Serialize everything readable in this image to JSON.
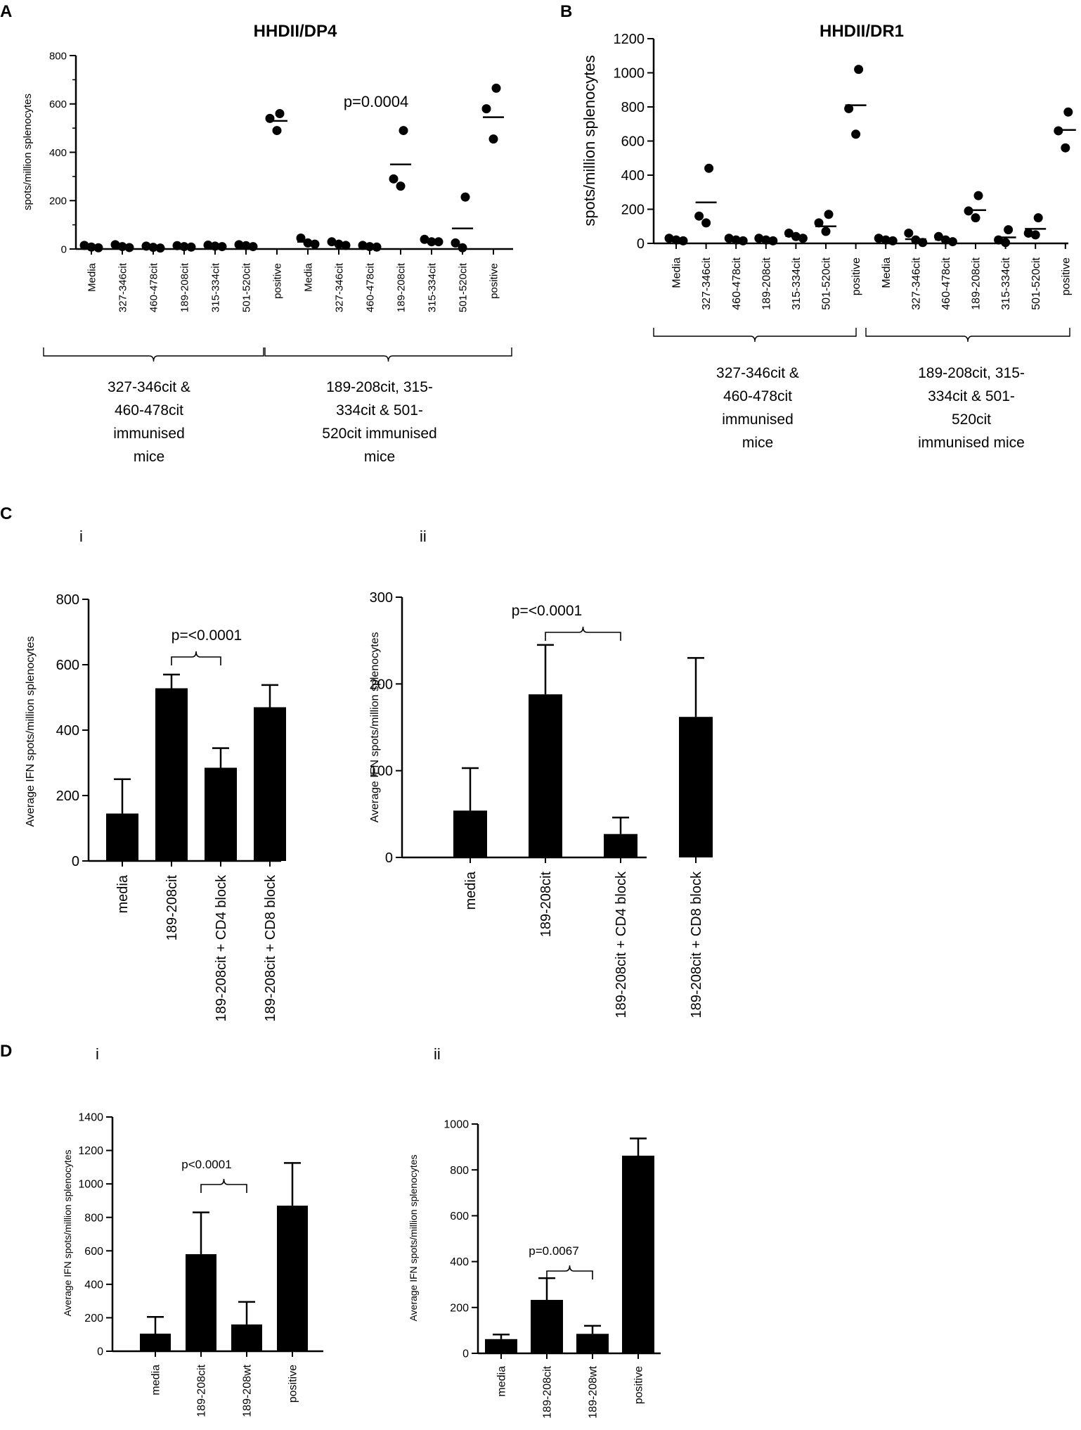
{
  "panels": {
    "A": {
      "label": "A"
    },
    "B": {
      "label": "B"
    },
    "C": {
      "label": "C",
      "sub_i": "i",
      "sub_ii": "ii"
    },
    "D": {
      "label": "D",
      "sub_i": "i",
      "sub_ii": "ii"
    }
  },
  "groups": {
    "group1": [
      "327-346cit &",
      "460-478cit",
      "immunised",
      "mice"
    ],
    "groupA2": [
      "189-208cit, 315-",
      "334cit & 501-",
      "520cit immunised",
      "mice"
    ],
    "groupB2": [
      "189-208cit, 315-",
      "334cit & 501-",
      "520cit",
      "immunised mice"
    ]
  },
  "chart_data": [
    {
      "id": "A",
      "type": "scatter",
      "title": "HHDII/DP4",
      "ylabel": "spots/million splenocytes",
      "ylim": [
        0,
        800
      ],
      "yticks": [
        0,
        200,
        400,
        600,
        800
      ],
      "categories": [
        "Media",
        "327-346cit",
        "460-478cit",
        "189-208cit",
        "315-334cit",
        "501-520cit",
        "positive",
        "Media",
        "327-346cit",
        "460-478cit",
        "189-208cit",
        "315-334cit",
        "501-520cit",
        "positive"
      ],
      "points": [
        [
          15,
          8,
          5
        ],
        [
          18,
          10,
          6
        ],
        [
          12,
          7,
          4
        ],
        [
          14,
          10,
          8
        ],
        [
          16,
          12,
          10
        ],
        [
          18,
          14,
          10
        ],
        [
          560,
          540,
          490
        ],
        [
          45,
          25,
          20
        ],
        [
          30,
          20,
          15
        ],
        [
          15,
          10,
          8
        ],
        [
          490,
          290,
          260
        ],
        [
          40,
          30,
          30
        ],
        [
          215,
          25,
          5
        ],
        [
          665,
          580,
          455
        ]
      ],
      "means": [
        9,
        11,
        8,
        11,
        13,
        14,
        530,
        30,
        22,
        11,
        350,
        33,
        85,
        545
      ],
      "annotation": "p=0.0004"
    },
    {
      "id": "B",
      "type": "scatter",
      "title": "HHDII/DR1",
      "ylabel": "spots/million splenocytes",
      "ylim": [
        0,
        1200
      ],
      "yticks": [
        0,
        200,
        400,
        600,
        800,
        1000,
        1200
      ],
      "categories": [
        "Media",
        "327-346cit",
        "460-478cit",
        "189-208cit",
        "315-334cit",
        "501-520cit",
        "positive",
        "Media",
        "327-346cit",
        "460-478cit",
        "189-208cit",
        "315-334cit",
        "501-520cit",
        "positive"
      ],
      "points": [
        [
          30,
          20,
          15
        ],
        [
          440,
          160,
          120
        ],
        [
          30,
          20,
          15
        ],
        [
          30,
          20,
          15
        ],
        [
          60,
          40,
          30
        ],
        [
          170,
          120,
          70
        ],
        [
          1020,
          790,
          640
        ],
        [
          30,
          20,
          15
        ],
        [
          60,
          20,
          5
        ],
        [
          40,
          20,
          10
        ],
        [
          280,
          190,
          150
        ],
        [
          80,
          20,
          5
        ],
        [
          150,
          60,
          50
        ],
        [
          770,
          660,
          560
        ]
      ],
      "means": [
        22,
        240,
        22,
        22,
        43,
        100,
        810,
        22,
        25,
        22,
        195,
        35,
        85,
        665
      ]
    },
    {
      "id": "Ci",
      "type": "bar",
      "ylabel": "Average IFN spots/million splenocytes",
      "ylim": [
        0,
        800
      ],
      "yticks": [
        0,
        200,
        400,
        600,
        800
      ],
      "categories": [
        "media",
        "189-208cit",
        "189-208cit + CD4 block",
        "189-208cit + CD8 block"
      ],
      "values": [
        145,
        528,
        285,
        470
      ],
      "errors": [
        105,
        42,
        60,
        68
      ],
      "annotation": "p=<0.0001",
      "bracket": [
        1,
        2
      ]
    },
    {
      "id": "Cii",
      "type": "bar",
      "ylabel": "Average IFN spots/million splenocytes",
      "ylim": [
        0,
        300
      ],
      "yticks": [
        0,
        100,
        200,
        300
      ],
      "categories": [
        "media",
        "189-208cit",
        "189-208cit + CD4 block",
        "189-208cit + CD8 block"
      ],
      "values": [
        54,
        188,
        27,
        162
      ],
      "errors": [
        49,
        57,
        19,
        68
      ],
      "annotation": "p=<0.0001",
      "bracket": [
        1,
        2
      ]
    },
    {
      "id": "Di",
      "type": "bar",
      "ylabel": "Average IFN spots/million splenocytes",
      "ylim": [
        0,
        1400
      ],
      "yticks": [
        0,
        200,
        400,
        600,
        800,
        1000,
        1200,
        1400
      ],
      "categories": [
        "media",
        "189-208cit",
        "189-208wt",
        "positive"
      ],
      "values": [
        105,
        580,
        160,
        870
      ],
      "errors": [
        100,
        250,
        135,
        255
      ],
      "annotation": "p<0.0001",
      "bracket": [
        1,
        2
      ]
    },
    {
      "id": "Dii",
      "type": "bar",
      "ylabel": "Average IFN spots/million splenocytes",
      "ylim": [
        0,
        1000
      ],
      "yticks": [
        0,
        200,
        400,
        600,
        800,
        1000
      ],
      "categories": [
        "media",
        "189-208cit",
        "189-208wt",
        "positive"
      ],
      "values": [
        62,
        233,
        85,
        862
      ],
      "errors": [
        20,
        95,
        35,
        75
      ],
      "annotation": "p=0.0067",
      "bracket": [
        1,
        2
      ]
    }
  ]
}
